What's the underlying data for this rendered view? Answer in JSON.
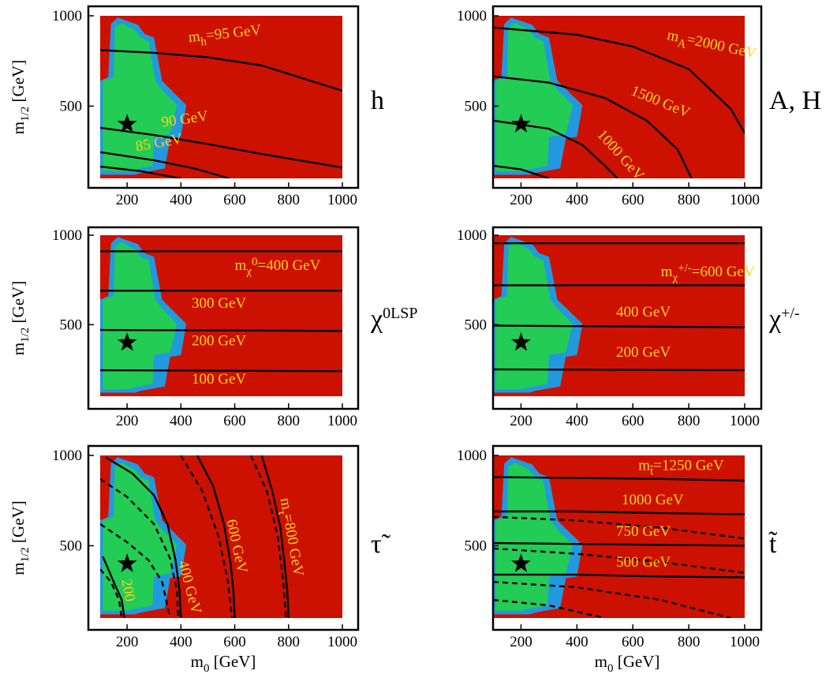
{
  "colors": {
    "excluded": "#cc1100",
    "allowed_inner": "#22cc55",
    "allowed_border": "#2299dd",
    "contour": "#000000",
    "label": "#ffd21a"
  },
  "chart_data": [
    {
      "id": "h",
      "type": "contour",
      "particle_label": "h",
      "xlim": [
        100,
        1000
      ],
      "ylim": [
        100,
        1000
      ],
      "xticks": [
        "200",
        "400",
        "600",
        "800",
        "1000"
      ],
      "yticks": [
        "500",
        "1000"
      ],
      "xlabel": "",
      "ylabel": "m1/2 [GeV]",
      "point": {
        "x": 200,
        "y": 400
      },
      "contours": [
        {
          "style": "solid",
          "points": [
            [
              100,
              810
            ],
            [
              300,
              795
            ],
            [
              500,
              770
            ],
            [
              700,
              725
            ],
            [
              1000,
              585
            ]
          ]
        },
        {
          "style": "solid",
          "points": [
            [
              100,
              380
            ],
            [
              300,
              340
            ],
            [
              500,
              290
            ],
            [
              700,
              235
            ],
            [
              1000,
              160
            ]
          ]
        },
        {
          "style": "solid",
          "points": [
            [
              100,
              245
            ],
            [
              300,
              200
            ],
            [
              450,
              155
            ],
            [
              580,
              100
            ]
          ]
        },
        {
          "style": "solid",
          "points": [
            [
              100,
              165
            ],
            [
              250,
              140
            ],
            [
              400,
              100
            ]
          ]
        }
      ],
      "labels": [
        {
          "text": "mh=95 GeV",
          "x": 430,
          "y": 855,
          "angle": -6
        },
        {
          "text": "90 GeV",
          "x": 330,
          "y": 385,
          "angle": -8
        },
        {
          "text": "85 GeV",
          "x": 235,
          "y": 250,
          "angle": -10
        }
      ]
    },
    {
      "id": "AH",
      "type": "contour",
      "particle_label": "A, H",
      "xlim": [
        100,
        1000
      ],
      "ylim": [
        100,
        1000
      ],
      "xticks": [
        "200",
        "400",
        "600",
        "800",
        "1000"
      ],
      "yticks": [
        "500",
        "1000"
      ],
      "xlabel": "",
      "ylabel": "",
      "point": {
        "x": 200,
        "y": 400
      },
      "contours": [
        {
          "style": "solid",
          "points": [
            [
              100,
              935
            ],
            [
              400,
              895
            ],
            [
              600,
              830
            ],
            [
              800,
              705
            ],
            [
              950,
              485
            ],
            [
              1000,
              350
            ]
          ]
        },
        {
          "style": "solid",
          "points": [
            [
              100,
              665
            ],
            [
              300,
              630
            ],
            [
              500,
              545
            ],
            [
              650,
              420
            ],
            [
              760,
              260
            ],
            [
              810,
              100
            ]
          ]
        },
        {
          "style": "solid",
          "points": [
            [
              100,
              420
            ],
            [
              300,
              375
            ],
            [
              420,
              285
            ],
            [
              500,
              170
            ],
            [
              545,
              100
            ]
          ]
        },
        {
          "style": "solid",
          "points": [
            [
              100,
              170
            ],
            [
              200,
              150
            ],
            [
              300,
              100
            ]
          ]
        }
      ],
      "labels": [
        {
          "text": "mA=2000 GeV",
          "x": 720,
          "y": 870,
          "angle": 12
        },
        {
          "text": "1500 GeV",
          "x": 590,
          "y": 565,
          "angle": 22
        },
        {
          "text": "1000 GeV",
          "x": 470,
          "y": 340,
          "angle": 48
        }
      ]
    },
    {
      "id": "chi0",
      "type": "contour",
      "particle_label": "χ0LSP",
      "xlim": [
        100,
        1000
      ],
      "ylim": [
        100,
        1000
      ],
      "xticks": [
        "200",
        "400",
        "600",
        "800",
        "1000"
      ],
      "yticks": [
        "500",
        "1000"
      ],
      "xlabel": "",
      "ylabel": "m1/2 [GeV]",
      "point": {
        "x": 200,
        "y": 400
      },
      "contours": [
        {
          "style": "solid",
          "points": [
            [
              100,
              910
            ],
            [
              1000,
              910
            ]
          ]
        },
        {
          "style": "solid",
          "points": [
            [
              100,
              690
            ],
            [
              1000,
              690
            ]
          ]
        },
        {
          "style": "solid",
          "points": [
            [
              100,
              470
            ],
            [
              1000,
              465
            ]
          ]
        },
        {
          "style": "solid",
          "points": [
            [
              100,
              245
            ],
            [
              1000,
              240
            ]
          ]
        }
      ],
      "labels": [
        {
          "text": "mχ0=400 GeV",
          "x": 600,
          "y": 805,
          "angle": 0
        },
        {
          "text": "300 GeV",
          "x": 440,
          "y": 595,
          "angle": 0
        },
        {
          "text": "200 GeV",
          "x": 440,
          "y": 385,
          "angle": 0
        },
        {
          "text": "100 GeV",
          "x": 440,
          "y": 170,
          "angle": 0
        }
      ]
    },
    {
      "id": "chipm",
      "type": "contour",
      "particle_label": "χ+/-",
      "xlim": [
        100,
        1000
      ],
      "ylim": [
        100,
        1000
      ],
      "xticks": [
        "200",
        "400",
        "600",
        "800",
        "1000"
      ],
      "yticks": [
        "500",
        "1000"
      ],
      "xlabel": "",
      "ylabel": "",
      "point": {
        "x": 200,
        "y": 400
      },
      "contours": [
        {
          "style": "solid",
          "points": [
            [
              100,
              955
            ],
            [
              1000,
              955
            ]
          ]
        },
        {
          "style": "solid",
          "points": [
            [
              100,
              720
            ],
            [
              1000,
              720
            ]
          ]
        },
        {
          "style": "solid",
          "points": [
            [
              100,
              495
            ],
            [
              1000,
              485
            ]
          ]
        },
        {
          "style": "solid",
          "points": [
            [
              100,
              250
            ],
            [
              1000,
              245
            ]
          ]
        }
      ],
      "labels": [
        {
          "text": "mχ+/-=600 GeV",
          "x": 700,
          "y": 770,
          "angle": 0
        },
        {
          "text": "400 GeV",
          "x": 540,
          "y": 545,
          "angle": 0
        },
        {
          "text": "200 GeV",
          "x": 540,
          "y": 320,
          "angle": 0
        }
      ]
    },
    {
      "id": "stau",
      "type": "contour",
      "particle_label": "τ̃",
      "xlim": [
        100,
        1000
      ],
      "ylim": [
        100,
        1000
      ],
      "xticks": [
        "200",
        "400",
        "600",
        "800",
        "1000"
      ],
      "yticks": [
        "500",
        "1000"
      ],
      "xlabel": "m0 [GeV]",
      "ylabel": "m1/2 [GeV]",
      "point": {
        "x": 200,
        "y": 400
      },
      "contours": [
        {
          "style": "solid",
          "points": [
            [
              110,
              440
            ],
            [
              150,
              300
            ],
            [
              180,
              200
            ],
            [
              190,
              100
            ]
          ]
        },
        {
          "style": "solid",
          "points": [
            [
              120,
              990
            ],
            [
              220,
              900
            ],
            [
              300,
              780
            ],
            [
              350,
              620
            ],
            [
              380,
              420
            ],
            [
              395,
              250
            ],
            [
              400,
              100
            ]
          ]
        },
        {
          "style": "solid",
          "points": [
            [
              460,
              1000
            ],
            [
              520,
              830
            ],
            [
              560,
              620
            ],
            [
              585,
              400
            ],
            [
              595,
              250
            ],
            [
              600,
              100
            ]
          ]
        },
        {
          "style": "solid",
          "points": [
            [
              700,
              1000
            ],
            [
              740,
              800
            ],
            [
              770,
              600
            ],
            [
              785,
              400
            ],
            [
              795,
              250
            ],
            [
              800,
              100
            ]
          ]
        },
        {
          "style": "dashed",
          "points": [
            [
              100,
              370
            ],
            [
              140,
              300
            ],
            [
              170,
              200
            ],
            [
              180,
              100
            ]
          ]
        },
        {
          "style": "dashed",
          "points": [
            [
              100,
              620
            ],
            [
              200,
              520
            ],
            [
              280,
              420
            ],
            [
              330,
              300
            ],
            [
              360,
              100
            ]
          ]
        },
        {
          "style": "dashed",
          "points": [
            [
              100,
              870
            ],
            [
              200,
              770
            ],
            [
              300,
              620
            ],
            [
              360,
              430
            ],
            [
              385,
              250
            ],
            [
              390,
              100
            ]
          ]
        },
        {
          "style": "dashed",
          "points": [
            [
              400,
              1000
            ],
            [
              480,
              800
            ],
            [
              540,
              550
            ],
            [
              575,
              300
            ],
            [
              590,
              100
            ]
          ]
        },
        {
          "style": "dashed",
          "points": [
            [
              660,
              1000
            ],
            [
              720,
              800
            ],
            [
              760,
              550
            ],
            [
              780,
              300
            ],
            [
              790,
              100
            ]
          ]
        }
      ],
      "labels": [
        {
          "text": "200",
          "x": 180,
          "y": 310,
          "angle": 80
        },
        {
          "text": "400 GeV",
          "x": 390,
          "y": 410,
          "angle": 75
        },
        {
          "text": "600 GeV",
          "x": 570,
          "y": 640,
          "angle": 78
        },
        {
          "text": "mτ̃=800 GeV",
          "x": 770,
          "y": 760,
          "angle": 80
        }
      ]
    },
    {
      "id": "stop",
      "type": "contour",
      "particle_label": "t̃",
      "xlim": [
        100,
        1000
      ],
      "ylim": [
        100,
        1000
      ],
      "xticks": [
        "200",
        "400",
        "600",
        "800",
        "1000"
      ],
      "yticks": [
        "500",
        "1000"
      ],
      "xlabel": "m0 [GeV]",
      "ylabel": "",
      "point": {
        "x": 200,
        "y": 400
      },
      "contours": [
        {
          "style": "solid",
          "points": [
            [
              100,
              880
            ],
            [
              400,
              875
            ],
            [
              700,
              870
            ],
            [
              1000,
              860
            ]
          ]
        },
        {
          "style": "solid",
          "points": [
            [
              100,
              690
            ],
            [
              400,
              690
            ],
            [
              700,
              680
            ],
            [
              1000,
              675
            ]
          ]
        },
        {
          "style": "solid",
          "points": [
            [
              100,
              515
            ],
            [
              400,
              510
            ],
            [
              700,
              505
            ],
            [
              1000,
              500
            ]
          ]
        },
        {
          "style": "solid",
          "points": [
            [
              100,
              340
            ],
            [
              400,
              340
            ],
            [
              700,
              330
            ],
            [
              1000,
              325
            ]
          ]
        },
        {
          "style": "dashed",
          "points": [
            [
              100,
              660
            ],
            [
              400,
              640
            ],
            [
              700,
              600
            ],
            [
              1000,
              540
            ]
          ]
        },
        {
          "style": "dashed",
          "points": [
            [
              100,
              485
            ],
            [
              400,
              455
            ],
            [
              700,
              410
            ],
            [
              1000,
              350
            ]
          ]
        },
        {
          "style": "dashed",
          "points": [
            [
              100,
              300
            ],
            [
              400,
              270
            ],
            [
              700,
              200
            ],
            [
              950,
              100
            ]
          ]
        },
        {
          "style": "dashed",
          "points": [
            [
              100,
              200
            ],
            [
              300,
              170
            ],
            [
              500,
              100
            ]
          ]
        }
      ],
      "labels": [
        {
          "text": "mt̃=1250 GeV",
          "x": 620,
          "y": 920,
          "angle": 0
        },
        {
          "text": "1000 GeV",
          "x": 560,
          "y": 730,
          "angle": 0
        },
        {
          "text": "750 GeV",
          "x": 540,
          "y": 555,
          "angle": 0
        },
        {
          "text": "500 GeV",
          "x": 540,
          "y": 385,
          "angle": 0
        }
      ]
    }
  ]
}
